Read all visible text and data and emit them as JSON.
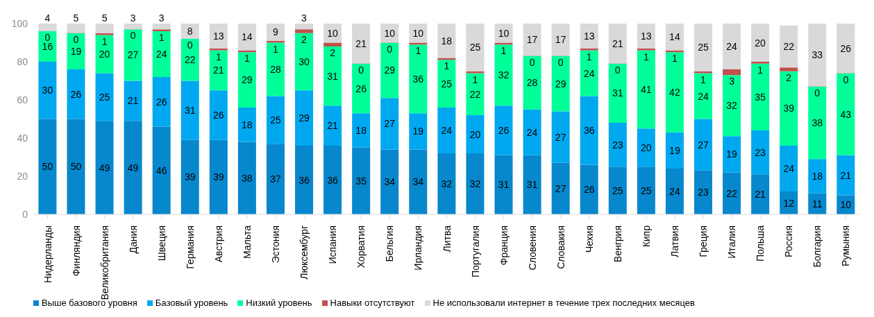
{
  "chart_data": {
    "type": "bar",
    "stacked": true,
    "data_labels": true,
    "legend": "bottom",
    "grid": false,
    "categories": [
      "Нидерланды",
      "Финляндия",
      "Великобритания",
      "Дания",
      "Швеция",
      "Германия",
      "Австрия",
      "Мальта",
      "Эстония",
      "Люксембург",
      "Испания",
      "Хорватия",
      "Бельгия",
      "Ирландия",
      "Литва",
      "Португалия",
      "Франция",
      "Словения",
      "Словакия",
      "Чехия",
      "Венгрия",
      "Кипр",
      "Латвия",
      "Греция",
      "Италия",
      "Польша",
      "Россия",
      "Болгария",
      "Румыния"
    ],
    "ylim": [
      0,
      100
    ],
    "yticks": [
      0,
      20,
      40,
      60,
      80,
      100
    ],
    "series": [
      {
        "name": "Выше базового уровня",
        "color": "#0787cc",
        "values": [
          50,
          50,
          49,
          49,
          46,
          39,
          39,
          38,
          37,
          36,
          36,
          35,
          34,
          34,
          32,
          32,
          31,
          31,
          27,
          26,
          25,
          25,
          24,
          23,
          22,
          21,
          12,
          11,
          10
        ]
      },
      {
        "name": "Базовый уровень",
        "color": "#00a8f0",
        "values": [
          30,
          26,
          25,
          21,
          26,
          31,
          26,
          18,
          25,
          29,
          21,
          18,
          27,
          19,
          24,
          20,
          26,
          24,
          27,
          36,
          23,
          20,
          19,
          27,
          19,
          23,
          24,
          18,
          21
        ]
      },
      {
        "name": "Низкий уровень",
        "color": "#00ff99",
        "values": [
          16,
          19,
          20,
          27,
          24,
          22,
          21,
          29,
          28,
          30,
          31,
          26,
          29,
          36,
          25,
          22,
          32,
          28,
          29,
          24,
          31,
          41,
          42,
          24,
          32,
          35,
          39,
          38,
          43
        ]
      },
      {
        "name": "Навыки отсутствуют",
        "color": "#c0504d",
        "values": [
          0,
          0,
          1,
          0,
          1,
          0,
          1,
          1,
          1,
          2,
          2,
          0,
          0,
          1,
          1,
          1,
          1,
          0,
          0,
          1,
          0,
          1,
          1,
          1,
          3,
          1,
          2,
          0,
          0
        ]
      },
      {
        "name": "Не использовали интернет в течение трех последних месяцев",
        "color": "#d9d9d9",
        "values": [
          4,
          5,
          5,
          3,
          3,
          8,
          13,
          14,
          9,
          3,
          10,
          21,
          10,
          10,
          18,
          25,
          10,
          17,
          17,
          13,
          21,
          13,
          14,
          25,
          24,
          20,
          22,
          33,
          26
        ]
      }
    ]
  }
}
